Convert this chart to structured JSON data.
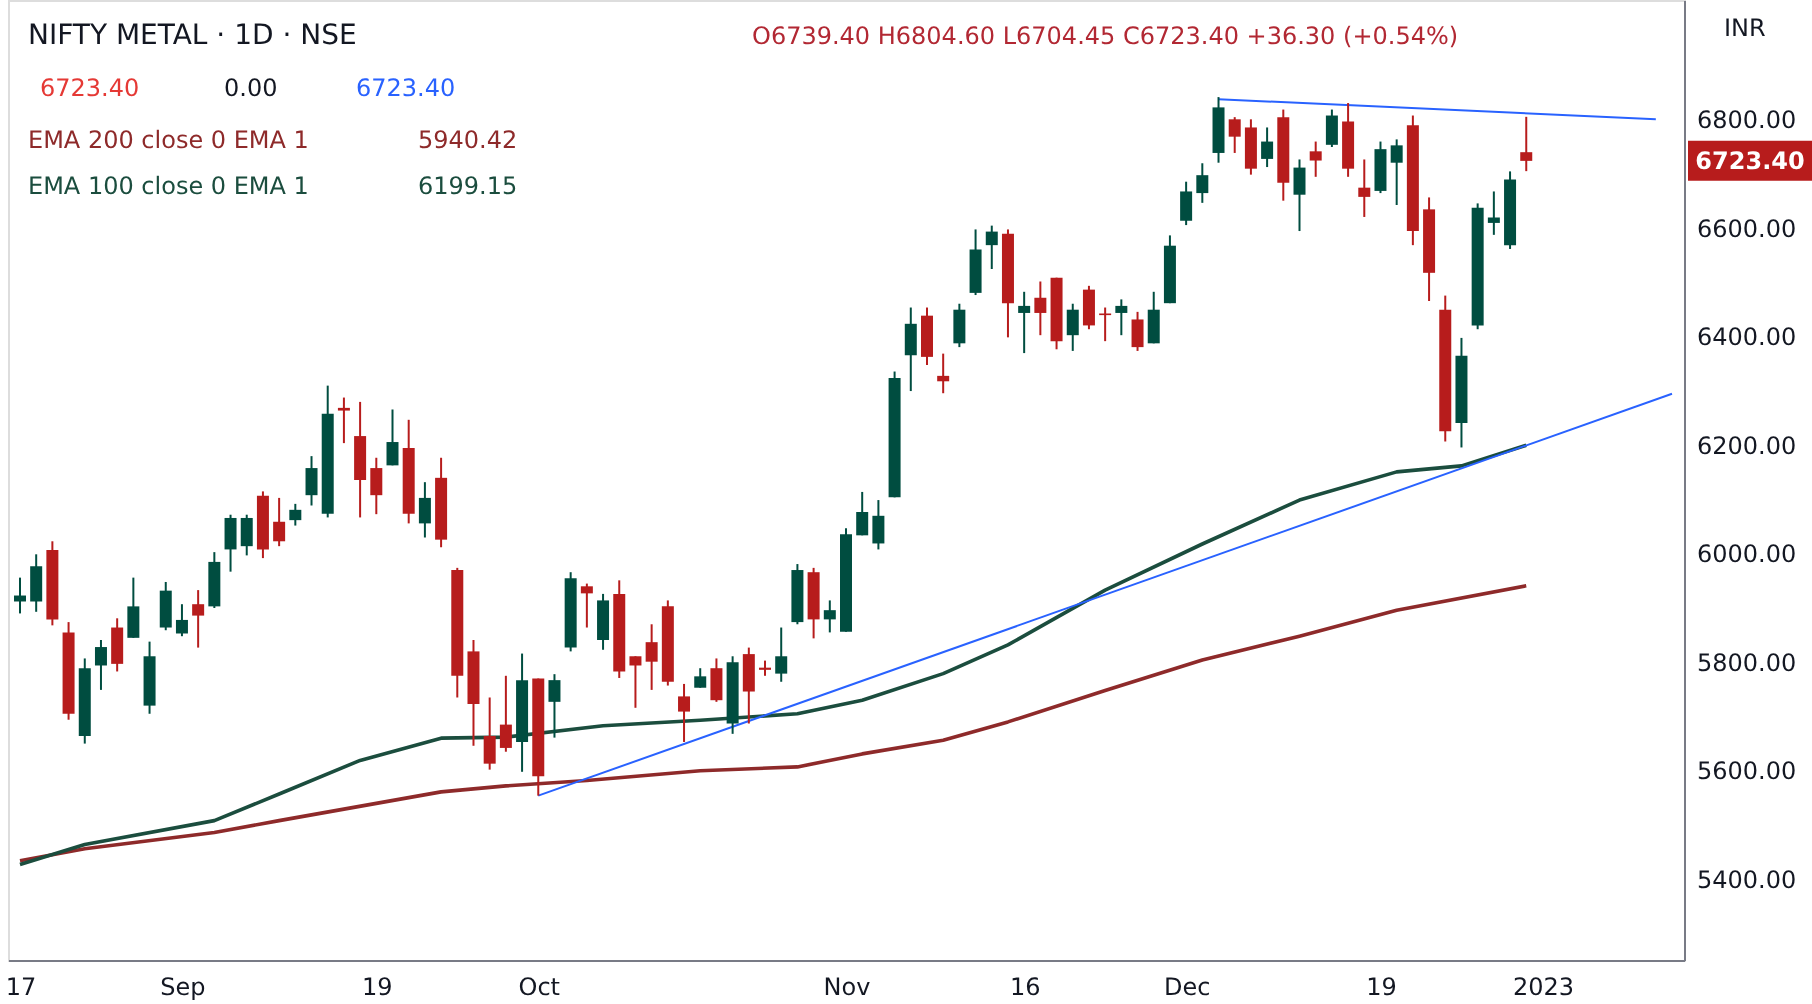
{
  "chart_data": {
    "type": "candlestick",
    "title": "NIFTY METAL · 1D · NSE",
    "subtitle": "O6739.40 H6804.60 L6704.45 C6723.40 +36.30 (+0.54%)",
    "ylabel": "INR",
    "annotations": [
      "6723.40",
      "0.00",
      "6723.40",
      "5940.42",
      "6199.15",
      "6723.40"
    ],
    "categories": [
      "17",
      null,
      null,
      null,
      null,
      null,
      null,
      null,
      null,
      null,
      "Sep",
      null,
      null,
      null,
      null,
      null,
      null,
      null,
      null,
      null,
      null,
      null,
      "19",
      null,
      null,
      null,
      null,
      null,
      null,
      null,
      null,
      null,
      "Oct",
      null,
      null,
      null,
      null,
      null,
      null,
      null,
      null,
      null,
      null,
      null,
      null,
      null,
      null,
      null,
      null,
      null,
      null,
      "Nov",
      null,
      null,
      null,
      null,
      null,
      null,
      null,
      null,
      null,
      null,
      "16",
      null,
      null,
      null,
      null,
      null,
      null,
      null,
      null,
      null,
      "Dec",
      null,
      null,
      null,
      null,
      null,
      null,
      null,
      null,
      null,
      null,
      null,
      "19",
      null,
      null,
      null,
      null,
      null,
      null,
      null,
      null,
      null,
      "2023",
      null,
      null,
      null,
      null,
      null,
      null,
      null,
      null
    ],
    "ohlc": [
      [
        5911,
        5955,
        5889,
        5922
      ],
      [
        5911,
        5998,
        5892,
        5976
      ],
      [
        6006,
        6022,
        5867,
        5878
      ],
      [
        5854,
        5873,
        5693,
        5704
      ],
      [
        5663,
        5806,
        5649,
        5788
      ],
      [
        5793,
        5840,
        5748,
        5827
      ],
      [
        5863,
        5880,
        5782,
        5796
      ],
      [
        5844,
        5955,
        5844,
        5902
      ],
      [
        5719,
        5837,
        5704,
        5810
      ],
      [
        5863,
        5947,
        5858,
        5931
      ],
      [
        5852,
        5906,
        5847,
        5877
      ],
      [
        5906,
        5932,
        5826,
        5885
      ],
      [
        5902,
        6002,
        5899,
        5984
      ],
      [
        6007,
        6071,
        5966,
        6065
      ],
      [
        6013,
        6071,
        5996,
        6065
      ],
      [
        6106,
        6114,
        5991,
        6007
      ],
      [
        6058,
        6102,
        6013,
        6022
      ],
      [
        6061,
        6091,
        6051,
        6080
      ],
      [
        6107,
        6179,
        6088,
        6157
      ],
      [
        6073,
        6309,
        6066,
        6257
      ],
      [
        6268,
        6287,
        6203,
        6263
      ],
      [
        6216,
        6279,
        6066,
        6135
      ],
      [
        6157,
        6176,
        6072,
        6107
      ],
      [
        6162,
        6265,
        6162,
        6205
      ],
      [
        6194,
        6246,
        6055,
        6073
      ],
      [
        6055,
        6131,
        6029,
        6102
      ],
      [
        6139,
        6176,
        6011,
        6025
      ],
      [
        5969,
        5973,
        5734,
        5774
      ],
      [
        5819,
        5840,
        5645,
        5722
      ],
      [
        5663,
        5734,
        5601,
        5612
      ],
      [
        5684,
        5774,
        5634,
        5641
      ],
      [
        5652,
        5815,
        5597,
        5766
      ],
      [
        5769,
        5769,
        5553,
        5589
      ],
      [
        5726,
        5777,
        5660,
        5766
      ],
      [
        5826,
        5965,
        5819,
        5954
      ],
      [
        5939,
        5944,
        5863,
        5926
      ],
      [
        5840,
        5925,
        5822,
        5913
      ],
      [
        5925,
        5950,
        5770,
        5782
      ],
      [
        5810,
        5810,
        5715,
        5793
      ],
      [
        5836,
        5869,
        5748,
        5800
      ],
      [
        5902,
        5913,
        5756,
        5763
      ],
      [
        5736,
        5759,
        5652,
        5708
      ],
      [
        5752,
        5788,
        5752,
        5773
      ],
      [
        5788,
        5806,
        5726,
        5729
      ],
      [
        5686,
        5810,
        5667,
        5799
      ],
      [
        5814,
        5826,
        5686,
        5745
      ],
      [
        5789,
        5802,
        5774,
        5785
      ],
      [
        5778,
        5863,
        5763,
        5810
      ],
      [
        5873,
        5980,
        5869,
        5969
      ],
      [
        5965,
        5973,
        5843,
        5878
      ],
      [
        5878,
        5913,
        5854,
        5895
      ],
      [
        5855,
        6046,
        5855,
        6035
      ],
      [
        6033,
        6113,
        6033,
        6076
      ],
      [
        6018,
        6098,
        6007,
        6069
      ],
      [
        6103,
        6335,
        6103,
        6323
      ],
      [
        6365,
        6453,
        6299,
        6423
      ],
      [
        6438,
        6453,
        6347,
        6362
      ],
      [
        6327,
        6368,
        6295,
        6317
      ],
      [
        6387,
        6460,
        6380,
        6449
      ],
      [
        6480,
        6597,
        6476,
        6560
      ],
      [
        6568,
        6604,
        6524,
        6593
      ],
      [
        6589,
        6597,
        6398,
        6461
      ],
      [
        6443,
        6482,
        6369,
        6456
      ],
      [
        6471,
        6501,
        6402,
        6443
      ],
      [
        6508,
        6508,
        6376,
        6391
      ],
      [
        6402,
        6460,
        6373,
        6449
      ],
      [
        6486,
        6493,
        6413,
        6420
      ],
      [
        6442,
        6453,
        6391,
        6439
      ],
      [
        6443,
        6468,
        6402,
        6456
      ],
      [
        6431,
        6445,
        6373,
        6380
      ],
      [
        6387,
        6482,
        6387,
        6449
      ],
      [
        6461,
        6586,
        6461,
        6567
      ],
      [
        6613,
        6685,
        6605,
        6667
      ],
      [
        6664,
        6719,
        6646,
        6697
      ],
      [
        6738,
        6841,
        6720,
        6822
      ],
      [
        6800,
        6804,
        6738,
        6768
      ],
      [
        6785,
        6800,
        6698,
        6709
      ],
      [
        6727,
        6785,
        6712,
        6759
      ],
      [
        6804,
        6818,
        6650,
        6683
      ],
      [
        6661,
        6726,
        6594,
        6711
      ],
      [
        6741,
        6759,
        6694,
        6724
      ],
      [
        6753,
        6818,
        6749,
        6807
      ],
      [
        6796,
        6830,
        6694,
        6709
      ],
      [
        6674,
        6726,
        6620,
        6657
      ],
      [
        6668,
        6759,
        6664,
        6745
      ],
      [
        6720,
        6763,
        6642,
        6752
      ],
      [
        6789,
        6807,
        6568,
        6594
      ],
      [
        6634,
        6656,
        6465,
        6517
      ],
      [
        6449,
        6475,
        6206,
        6225
      ],
      [
        6240,
        6397,
        6195,
        6364
      ],
      [
        6420,
        6645,
        6413,
        6637
      ],
      [
        6609,
        6667,
        6587,
        6619
      ],
      [
        6568,
        6704,
        6561,
        6689
      ],
      [
        6739.4,
        6804.6,
        6704.45,
        6723.4
      ],
      null,
      null,
      null,
      null,
      null,
      null,
      null,
      null,
      null
    ],
    "colors": [
      "#004d40",
      "#004d40",
      "#b71c1c",
      "#b71c1c",
      "#004d40",
      "#004d40",
      "#b71c1c",
      "#004d40",
      "#004d40",
      "#004d40",
      "#004d40",
      "#b71c1c",
      "#004d40",
      "#004d40",
      "#004d40",
      "#b71c1c",
      "#b71c1c",
      "#004d40",
      "#004d40",
      "#004d40",
      "#b71c1c",
      "#b71c1c",
      "#b71c1c",
      "#004d40",
      "#b71c1c",
      "#004d40",
      "#b71c1c",
      "#b71c1c",
      "#b71c1c",
      "#b71c1c",
      "#b71c1c",
      "#004d40",
      "#b71c1c",
      "#004d40",
      "#004d40",
      "#b71c1c",
      "#004d40",
      "#b71c1c",
      "#b71c1c",
      "#b71c1c",
      "#b71c1c",
      "#b71c1c",
      "#004d40",
      "#b71c1c",
      "#004d40",
      "#b71c1c",
      "#b71c1c",
      "#004d40",
      "#004d40",
      "#b71c1c",
      "#004d40",
      "#004d40",
      "#004d40",
      "#004d40",
      "#004d40",
      "#004d40",
      "#b71c1c",
      "#b71c1c",
      "#004d40",
      "#004d40",
      "#004d40",
      "#b71c1c",
      "#004d40",
      "#b71c1c",
      "#b71c1c",
      "#004d40",
      "#b71c1c",
      "#b71c1c",
      "#004d40",
      "#b71c1c",
      "#004d40",
      "#004d40",
      "#004d40",
      "#004d40",
      "#004d40",
      "#b71c1c",
      "#b71c1c",
      "#004d40",
      "#b71c1c",
      "#004d40",
      "#b71c1c",
      "#004d40",
      "#b71c1c",
      "#b71c1c",
      "#004d40",
      "#004d40",
      "#b71c1c",
      "#b71c1c",
      "#b71c1c",
      "#004d40",
      "#004d40",
      "#004d40",
      "#004d40",
      "#b71c1c",
      null,
      null,
      null,
      null,
      null,
      null,
      null,
      null,
      null
    ],
    "series": [
      {
        "name": "EMA 200 close 0 EMA 1",
        "type": "line",
        "color": "#8e2a2a",
        "values": [
          5433,
          null,
          null,
          null,
          5455,
          null,
          null,
          null,
          null,
          null,
          null,
          null,
          5485,
          null,
          null,
          null,
          5507,
          null,
          null,
          null,
          null,
          null,
          null,
          null,
          null,
          null,
          5560,
          null,
          null,
          null,
          5571,
          null,
          null,
          null,
          null,
          5581,
          null,
          null,
          null,
          null,
          null,
          null,
          5599,
          null,
          null,
          null,
          null,
          null,
          5606,
          null,
          null,
          null,
          5630,
          null,
          null,
          null,
          null,
          5655,
          null,
          null,
          null,
          5689,
          null,
          null,
          null,
          null,
          null,
          5747,
          null,
          null,
          null,
          null,
          null,
          5803,
          null,
          null,
          null,
          null,
          null,
          5847,
          null,
          null,
          null,
          null,
          null,
          5895,
          null,
          null,
          null,
          null,
          null,
          null,
          null,
          5940,
          null,
          null,
          null,
          null,
          null,
          null,
          null,
          null,
          null
        ]
      },
      {
        "name": "EMA 100 close 0 EMA 1",
        "type": "line",
        "color": "#1b4d3e",
        "values": [
          5426,
          null,
          null,
          null,
          5463,
          null,
          null,
          null,
          null,
          null,
          null,
          null,
          5507,
          null,
          null,
          null,
          5556,
          null,
          null,
          null,
          null,
          5618,
          null,
          null,
          null,
          null,
          5659,
          null,
          null,
          null,
          5661,
          null,
          null,
          null,
          null,
          null,
          5682,
          null,
          null,
          null,
          null,
          null,
          5692,
          null,
          null,
          null,
          null,
          null,
          5704,
          null,
          null,
          null,
          5729,
          null,
          null,
          null,
          null,
          5778,
          null,
          null,
          null,
          5831,
          null,
          null,
          null,
          null,
          null,
          5932,
          null,
          null,
          null,
          null,
          null,
          6017,
          null,
          null,
          null,
          null,
          null,
          6098,
          null,
          null,
          null,
          null,
          null,
          6150,
          null,
          null,
          null,
          6161,
          null,
          null,
          null,
          6199,
          null,
          null,
          null,
          null,
          null,
          null,
          null,
          null,
          null
        ]
      },
      {
        "type": "line",
        "color": "#2962ff",
        "values": [
          null,
          null,
          null,
          null,
          null,
          null,
          null,
          null,
          null,
          null,
          null,
          null,
          null,
          null,
          null,
          null,
          null,
          null,
          null,
          null,
          null,
          null,
          null,
          null,
          null,
          null,
          null,
          null,
          null,
          null,
          null,
          null,
          5553,
          null,
          null,
          null,
          null,
          null,
          null,
          null,
          null,
          null,
          null,
          null,
          null,
          null,
          null,
          null,
          null,
          null,
          null,
          null,
          null,
          null,
          null,
          null,
          null,
          null,
          null,
          null,
          null,
          null,
          null,
          null,
          null,
          null,
          null,
          null,
          null,
          null,
          null,
          null,
          null,
          null,
          null,
          null,
          null,
          null,
          null,
          null,
          null,
          null,
          null,
          null,
          null,
          null,
          null,
          null,
          null,
          null,
          null,
          null,
          null,
          null,
          null,
          null,
          null,
          null,
          null,
          null,
          null,
          null,
          6294
        ]
      },
      {
        "type": "line",
        "color": "#2962ff",
        "values": [
          null,
          null,
          null,
          null,
          null,
          null,
          null,
          null,
          null,
          null,
          null,
          null,
          null,
          null,
          null,
          null,
          null,
          null,
          null,
          null,
          null,
          null,
          null,
          null,
          null,
          null,
          null,
          null,
          null,
          null,
          null,
          null,
          null,
          null,
          null,
          null,
          null,
          null,
          null,
          null,
          null,
          null,
          null,
          null,
          null,
          null,
          null,
          null,
          null,
          null,
          null,
          null,
          null,
          null,
          null,
          null,
          null,
          null,
          null,
          null,
          null,
          null,
          null,
          null,
          null,
          null,
          null,
          null,
          null,
          null,
          null,
          null,
          null,
          null,
          6837,
          null,
          null,
          null,
          null,
          null,
          null,
          null,
          null,
          null,
          null,
          null,
          null,
          null,
          null,
          null,
          null,
          null,
          null,
          null,
          null,
          null,
          null,
          null,
          null,
          null,
          null,
          6800,
          null
        ]
      }
    ],
    "ylim": [
      5250,
      7020
    ],
    "yticks": [
      {
        "value": 5400,
        "label": "5400.00"
      },
      {
        "value": 5600,
        "label": "5600.00"
      },
      {
        "value": 5800,
        "label": "5800.00"
      },
      {
        "value": 6000,
        "label": "6000.00"
      },
      {
        "value": 6200,
        "label": "6200.00"
      },
      {
        "value": 6400,
        "label": "6400.00"
      },
      {
        "value": 6600,
        "label": "6600.00"
      },
      {
        "value": 6800,
        "label": "6800.00"
      }
    ],
    "grid": false,
    "legend": "top left"
  }
}
